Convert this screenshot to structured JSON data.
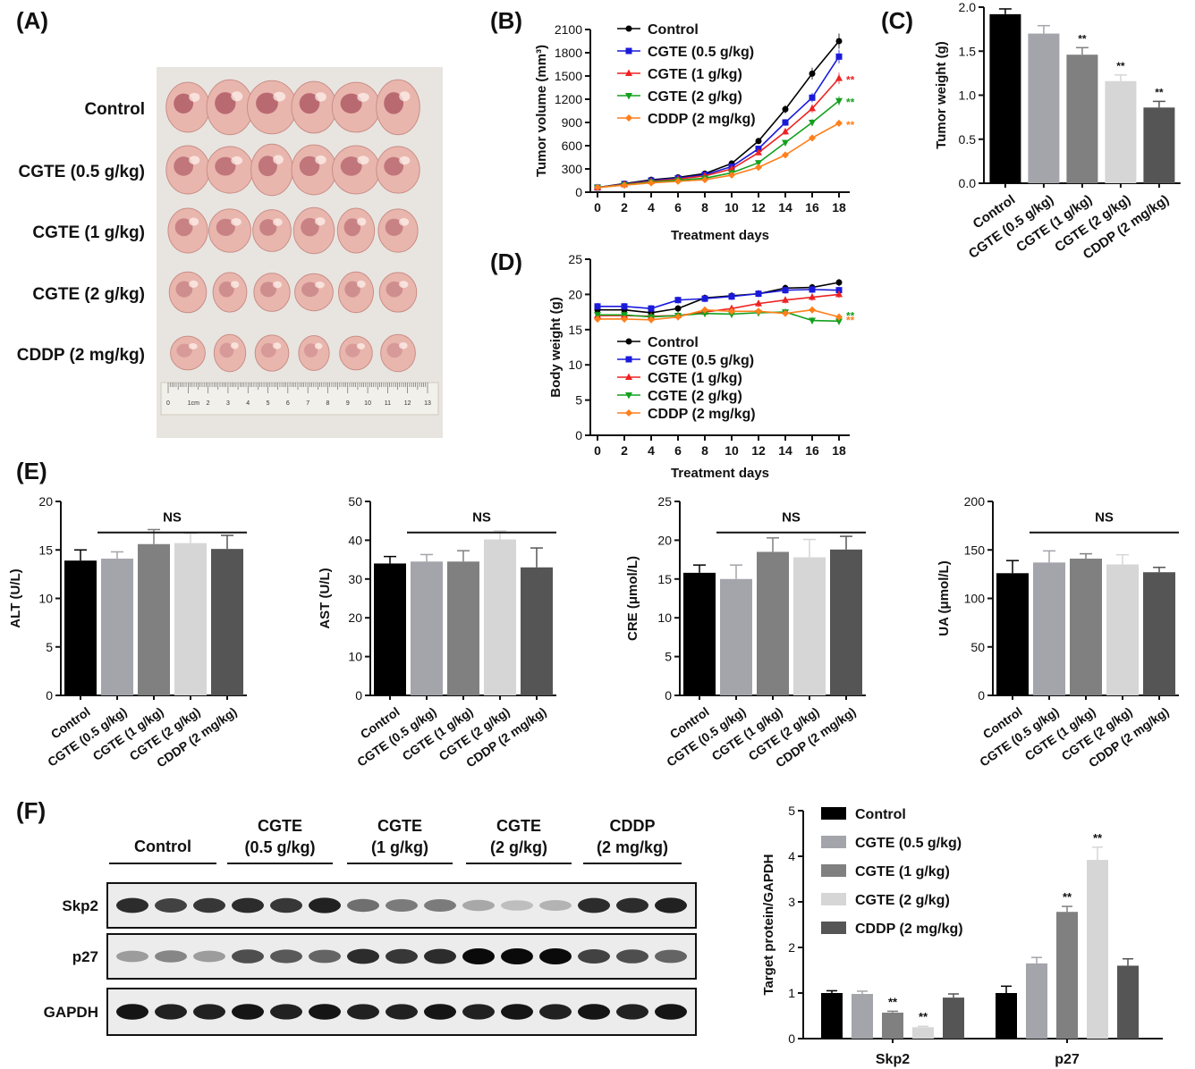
{
  "panels": {
    "a": "(A)",
    "b": "(B)",
    "c": "(C)",
    "d": "(D)",
    "e": "(E)",
    "f": "(F)"
  },
  "groups": [
    "Control",
    "CGTE (0.5 g/kg)",
    "CGTE (1 g/kg)",
    "CGTE (2 g/kg)",
    "CDDP (2 mg/kg)"
  ],
  "group_colors": [
    "#000000",
    "#1a1adb",
    "#ee2222",
    "#14a01e",
    "#ff7f1a"
  ],
  "bar_colors": [
    "#000000",
    "#a4a4ab",
    "#808080",
    "#d6d6d6",
    "#555555"
  ],
  "photo": {
    "row_labels": [
      "Control",
      "CGTE (0.5 g/kg)",
      "CGTE (1 g/kg)",
      "CGTE (2 g/kg)",
      "CDDP (2 mg/kg)"
    ],
    "ruler_numbers": [
      "0",
      "1cm",
      "2",
      "3",
      "4",
      "5",
      "6",
      "7",
      "8",
      "9",
      "10",
      "11",
      "12",
      "13"
    ]
  },
  "chart_data": [
    {
      "id": "B",
      "type": "line",
      "xlabel": "Treatment days",
      "ylabel": "Tumor volume (mm³)",
      "x": [
        0,
        2,
        4,
        6,
        8,
        10,
        12,
        14,
        16,
        18
      ],
      "xticks": [
        "0",
        "2",
        "4",
        "6",
        "8",
        "10",
        "12",
        "14",
        "16",
        "18"
      ],
      "yticks": [
        "0",
        "300",
        "600",
        "900",
        "1200",
        "1500",
        "1800",
        "2100"
      ],
      "ylim": [
        0,
        2100
      ],
      "legend": "top-left",
      "series": [
        {
          "name": "Control",
          "values": [
            60,
            110,
            160,
            190,
            240,
            370,
            660,
            1070,
            1530,
            1950
          ]
        },
        {
          "name": "CGTE (0.5 g/kg)",
          "values": [
            60,
            105,
            150,
            180,
            225,
            330,
            560,
            900,
            1220,
            1750
          ]
        },
        {
          "name": "CGTE (1 g/kg)",
          "values": [
            60,
            100,
            140,
            170,
            210,
            300,
            510,
            780,
            1080,
            1470
          ]
        },
        {
          "name": "CGTE (2 g/kg)",
          "values": [
            60,
            95,
            130,
            155,
            180,
            250,
            380,
            640,
            900,
            1180
          ]
        },
        {
          "name": "CDDP (2 mg/kg)",
          "values": [
            60,
            90,
            120,
            140,
            160,
            220,
            320,
            480,
            700,
            890
          ]
        }
      ],
      "annotations": [
        "**",
        "**",
        "**"
      ]
    },
    {
      "id": "C",
      "type": "bar",
      "ylabel": "Tumor weight (g)",
      "categories": [
        "Control",
        "CGTE (0.5 g/kg)",
        "CGTE (1 g/kg)",
        "CGTE (2 g/kg)",
        "CDDP (2 mg/kg)"
      ],
      "values": [
        1.92,
        1.7,
        1.46,
        1.16,
        0.86
      ],
      "errors": [
        0.06,
        0.09,
        0.08,
        0.07,
        0.07
      ],
      "yticks": [
        "0.0",
        "0.5",
        "1.0",
        "1.5",
        "2.0"
      ],
      "ylim": [
        0,
        2.0
      ],
      "annotations": [
        "",
        "",
        "**",
        "**",
        "**"
      ]
    },
    {
      "id": "D",
      "type": "line",
      "xlabel": "Treatment days",
      "ylabel": "Body weight (g)",
      "x": [
        0,
        2,
        4,
        6,
        8,
        10,
        12,
        14,
        16,
        18
      ],
      "xticks": [
        "0",
        "2",
        "4",
        "6",
        "8",
        "10",
        "12",
        "14",
        "16",
        "18"
      ],
      "yticks": [
        "0",
        "5",
        "10",
        "15",
        "20",
        "25"
      ],
      "ylim": [
        0,
        25
      ],
      "legend": "bottom-left",
      "series": [
        {
          "name": "Control",
          "values": [
            17.8,
            17.8,
            17.4,
            18.0,
            19.5,
            19.8,
            20.1,
            20.9,
            21.0,
            21.7
          ]
        },
        {
          "name": "CGTE (0.5 g/kg)",
          "values": [
            18.3,
            18.3,
            18.0,
            19.2,
            19.4,
            19.7,
            20.1,
            20.6,
            20.7,
            20.6
          ]
        },
        {
          "name": "CGTE (1 g/kg)",
          "values": [
            17.0,
            17.0,
            16.9,
            17.0,
            17.5,
            18.0,
            18.7,
            19.2,
            19.6,
            20.0
          ]
        },
        {
          "name": "CGTE (2 g/kg)",
          "values": [
            17.1,
            17.1,
            16.8,
            17.0,
            17.3,
            17.2,
            17.4,
            17.5,
            16.3,
            16.2
          ]
        },
        {
          "name": "CDDP (2 mg/kg)",
          "values": [
            16.5,
            16.5,
            16.4,
            16.8,
            17.8,
            17.6,
            17.6,
            17.3,
            17.8,
            16.8
          ]
        }
      ],
      "annotations": [
        "**",
        "**"
      ]
    },
    {
      "id": "E1",
      "type": "bar",
      "ylabel": "ALT (U/L)",
      "categories": [
        "Control",
        "CGTE (0.5 g/kg)",
        "CGTE (1 g/kg)",
        "CGTE (2 g/kg)",
        "CDDP (2 mg/kg)"
      ],
      "values": [
        13.9,
        14.1,
        15.6,
        15.7,
        15.1
      ],
      "errors": [
        1.1,
        0.7,
        1.5,
        1.0,
        1.4
      ],
      "yticks": [
        "0",
        "5",
        "10",
        "15",
        "20"
      ],
      "ylim": [
        0,
        20
      ],
      "significance": "NS"
    },
    {
      "id": "E2",
      "type": "bar",
      "ylabel": "AST (U/L)",
      "categories": [
        "Control",
        "CGTE (0.5 g/kg)",
        "CGTE (1 g/kg)",
        "CGTE (2 g/kg)",
        "CDDP (2 mg/kg)"
      ],
      "values": [
        34.0,
        34.5,
        34.5,
        40.2,
        33.0
      ],
      "errors": [
        1.8,
        1.8,
        2.8,
        2.2,
        5.0
      ],
      "yticks": [
        "0",
        "10",
        "20",
        "30",
        "40",
        "50"
      ],
      "ylim": [
        0,
        50
      ],
      "significance": "NS"
    },
    {
      "id": "E3",
      "type": "bar",
      "ylabel": "CRE (μmol/L)",
      "categories": [
        "Control",
        "CGTE (0.5 g/kg)",
        "CGTE (1 g/kg)",
        "CGTE (2 g/kg)",
        "CDDP (2 mg/kg)"
      ],
      "values": [
        15.8,
        15.0,
        18.5,
        17.8,
        18.8
      ],
      "errors": [
        1.0,
        1.8,
        1.8,
        2.3,
        1.7
      ],
      "yticks": [
        "0",
        "5",
        "10",
        "15",
        "20",
        "25"
      ],
      "ylim": [
        0,
        25
      ],
      "significance": "NS"
    },
    {
      "id": "E4",
      "type": "bar",
      "ylabel": "UA (μmol/L)",
      "categories": [
        "Control",
        "CGTE (0.5 g/kg)",
        "CGTE (1 g/kg)",
        "CGTE (2 g/kg)",
        "CDDP (2 mg/kg)"
      ],
      "values": [
        126,
        137,
        141,
        135,
        127
      ],
      "errors": [
        13,
        12,
        5,
        10,
        5
      ],
      "yticks": [
        "0",
        "50",
        "100",
        "150",
        "200"
      ],
      "ylim": [
        0,
        200
      ],
      "significance": "NS"
    },
    {
      "id": "F",
      "type": "bar",
      "ylabel": "Target protein/GAPDH",
      "categories": [
        "Skp2",
        "p27"
      ],
      "series": [
        {
          "name": "Control",
          "values": [
            1.0,
            1.0
          ],
          "errors": [
            0.05,
            0.15
          ]
        },
        {
          "name": "CGTE (0.5 g/kg)",
          "values": [
            0.98,
            1.65
          ],
          "errors": [
            0.06,
            0.13
          ]
        },
        {
          "name": "CGTE (1 g/kg)",
          "values": [
            0.57,
            2.78
          ],
          "errors": [
            0.03,
            0.12
          ]
        },
        {
          "name": "CGTE (2 g/kg)",
          "values": [
            0.25,
            3.92
          ],
          "errors": [
            0.02,
            0.28
          ]
        },
        {
          "name": "CDDP (2 mg/kg)",
          "values": [
            0.9,
            1.6
          ],
          "errors": [
            0.08,
            0.15
          ]
        }
      ],
      "yticks": [
        "0",
        "1",
        "2",
        "3",
        "4",
        "5"
      ],
      "ylim": [
        0,
        5
      ],
      "legend": "top-left",
      "annotations": {
        "Skp2": [
          "",
          "",
          "**",
          "**",
          ""
        ],
        "p27": [
          "",
          "",
          "**",
          "**",
          ""
        ]
      }
    }
  ],
  "western": {
    "group_labels": [
      [
        "Control"
      ],
      [
        "CGTE",
        "(0.5 g/kg)"
      ],
      [
        "CGTE",
        "(1 g/kg)"
      ],
      [
        "CGTE",
        "(2 g/kg)"
      ],
      [
        "CDDP",
        "(2 mg/kg)"
      ]
    ],
    "rows": [
      {
        "label": "Skp2",
        "intensity": [
          0.85,
          0.75,
          0.8,
          0.85,
          0.8,
          0.9,
          0.55,
          0.5,
          0.5,
          0.3,
          0.2,
          0.25,
          0.85,
          0.85,
          0.9
        ]
      },
      {
        "label": "p27",
        "intensity": [
          0.35,
          0.45,
          0.35,
          0.7,
          0.65,
          0.6,
          0.85,
          0.8,
          0.85,
          1.0,
          1.0,
          1.0,
          0.75,
          0.7,
          0.6
        ]
      },
      {
        "label": "GAPDH",
        "intensity": [
          0.95,
          0.9,
          0.9,
          0.95,
          0.9,
          0.95,
          0.9,
          0.9,
          0.95,
          0.9,
          0.95,
          0.9,
          0.95,
          0.9,
          0.95
        ]
      }
    ]
  }
}
